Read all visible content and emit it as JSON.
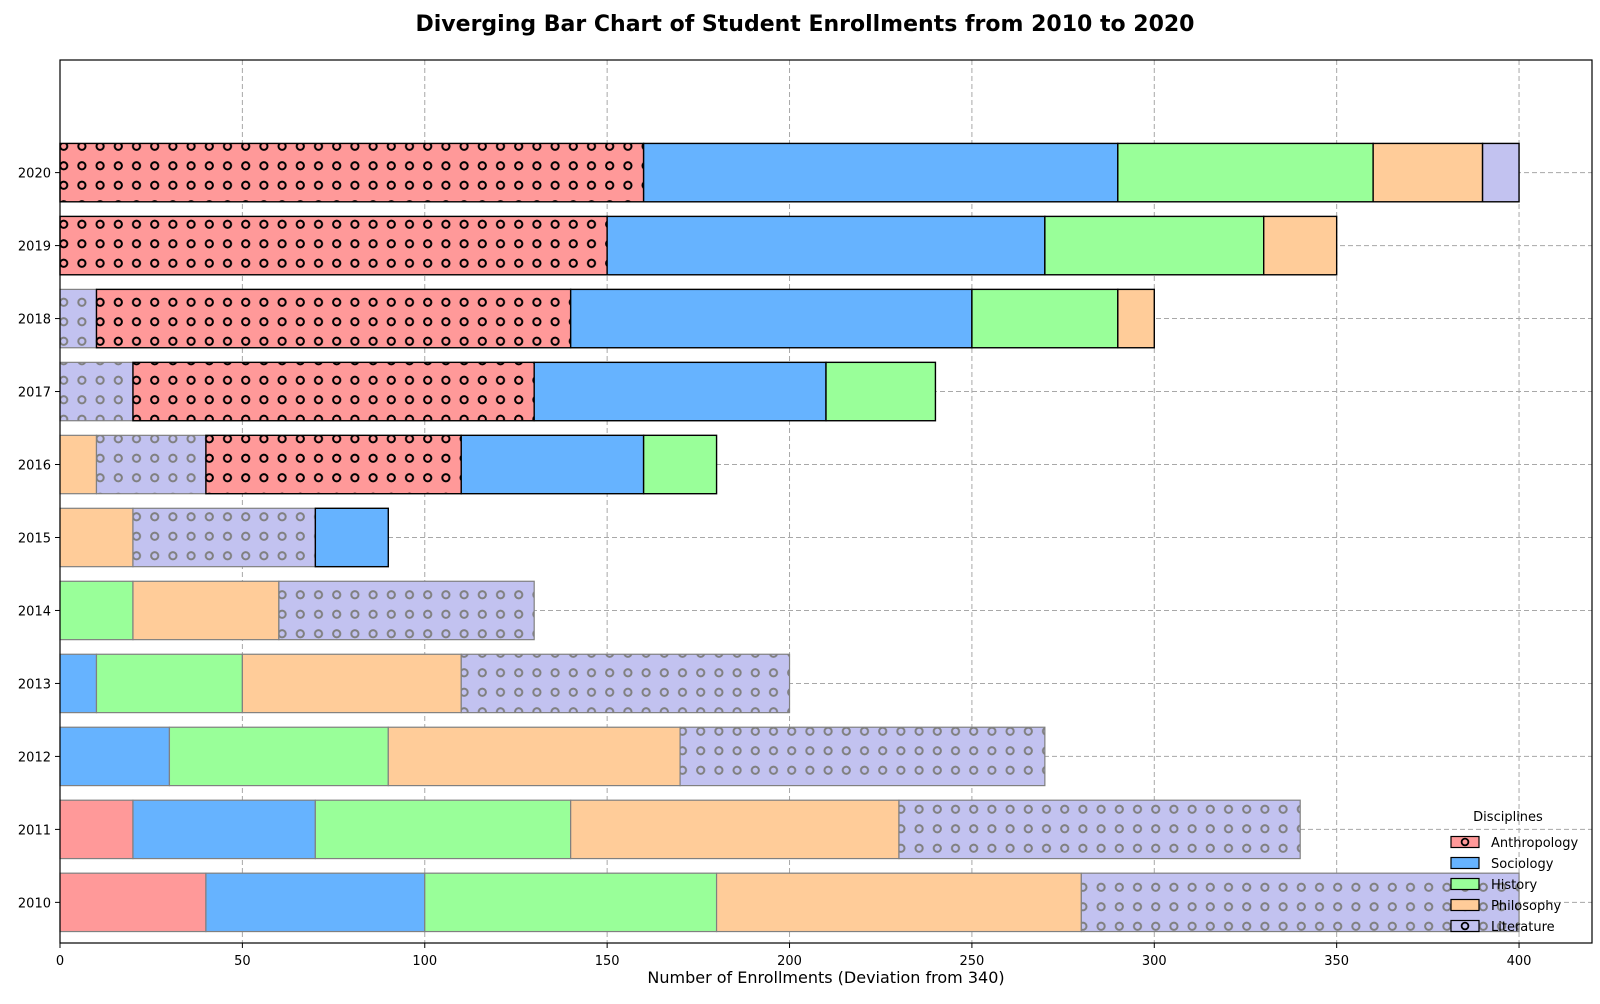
{
  "chart_data": {
    "type": "bar",
    "orientation": "horizontal",
    "stacking": "stacked",
    "title": "Diverging Bar Chart of Student Enrollments from 2010 to 2020",
    "xlabel": "Number of Enrollments (Deviation from 340)",
    "ylabel": "",
    "xlim": [
      0,
      420
    ],
    "xticks": [
      0,
      50,
      100,
      150,
      200,
      250,
      300,
      350,
      400
    ],
    "grid": true,
    "legend": {
      "title": "Disciplines",
      "placement": "bottom-right"
    },
    "categories": [
      "2010",
      "2011",
      "2012",
      "2013",
      "2014",
      "2015",
      "2016",
      "2017",
      "2018",
      "2019",
      "2020"
    ],
    "series": [
      {
        "name": "Anthropology",
        "color": "#ff9999",
        "hatch": "circles"
      },
      {
        "name": "Sociology",
        "color": "#66b3ff",
        "hatch": "none"
      },
      {
        "name": "History",
        "color": "#99ff99",
        "hatch": "none"
      },
      {
        "name": "Philosophy",
        "color": "#ffcc99",
        "hatch": "none"
      },
      {
        "name": "Literature",
        "color": "#c2c2f0",
        "hatch": "circles"
      }
    ],
    "segments": [
      {
        "category": "2010",
        "parts": [
          {
            "series": "Anthropology",
            "start": 0,
            "end": 40,
            "hatch": false,
            "dark_edge": false
          },
          {
            "series": "Sociology",
            "start": 40,
            "end": 100,
            "hatch": false,
            "dark_edge": false
          },
          {
            "series": "History",
            "start": 100,
            "end": 180,
            "hatch": false,
            "dark_edge": false
          },
          {
            "series": "Philosophy",
            "start": 180,
            "end": 280,
            "hatch": false,
            "dark_edge": false
          },
          {
            "series": "Literature",
            "start": 280,
            "end": 400,
            "hatch": true,
            "dark_edge": false
          }
        ]
      },
      {
        "category": "2011",
        "parts": [
          {
            "series": "Anthropology",
            "start": 0,
            "end": 20,
            "hatch": false,
            "dark_edge": false
          },
          {
            "series": "Sociology",
            "start": 20,
            "end": 70,
            "hatch": false,
            "dark_edge": false
          },
          {
            "series": "History",
            "start": 70,
            "end": 140,
            "hatch": false,
            "dark_edge": false
          },
          {
            "series": "Philosophy",
            "start": 140,
            "end": 230,
            "hatch": false,
            "dark_edge": false
          },
          {
            "series": "Literature",
            "start": 230,
            "end": 340,
            "hatch": true,
            "dark_edge": false
          }
        ]
      },
      {
        "category": "2012",
        "parts": [
          {
            "series": "Sociology",
            "start": 0,
            "end": 30,
            "hatch": false,
            "dark_edge": false
          },
          {
            "series": "History",
            "start": 30,
            "end": 90,
            "hatch": false,
            "dark_edge": false
          },
          {
            "series": "Philosophy",
            "start": 90,
            "end": 170,
            "hatch": false,
            "dark_edge": false
          },
          {
            "series": "Literature",
            "start": 170,
            "end": 270,
            "hatch": true,
            "dark_edge": false
          }
        ]
      },
      {
        "category": "2013",
        "parts": [
          {
            "series": "Sociology",
            "start": 0,
            "end": 10,
            "hatch": false,
            "dark_edge": false
          },
          {
            "series": "History",
            "start": 10,
            "end": 50,
            "hatch": false,
            "dark_edge": false
          },
          {
            "series": "Philosophy",
            "start": 50,
            "end": 110,
            "hatch": false,
            "dark_edge": false
          },
          {
            "series": "Literature",
            "start": 110,
            "end": 200,
            "hatch": true,
            "dark_edge": false
          }
        ]
      },
      {
        "category": "2014",
        "parts": [
          {
            "series": "History",
            "start": 0,
            "end": 20,
            "hatch": false,
            "dark_edge": false
          },
          {
            "series": "Philosophy",
            "start": 20,
            "end": 60,
            "hatch": false,
            "dark_edge": false
          },
          {
            "series": "Literature",
            "start": 60,
            "end": 130,
            "hatch": true,
            "dark_edge": false
          }
        ]
      },
      {
        "category": "2015",
        "parts": [
          {
            "series": "Philosophy",
            "start": 0,
            "end": 20,
            "hatch": false,
            "dark_edge": false
          },
          {
            "series": "Literature",
            "start": 20,
            "end": 70,
            "hatch": true,
            "dark_edge": false
          },
          {
            "series": "Sociology",
            "start": 70,
            "end": 90,
            "hatch": false,
            "dark_edge": true
          }
        ]
      },
      {
        "category": "2016",
        "parts": [
          {
            "series": "Philosophy",
            "start": 0,
            "end": 10,
            "hatch": false,
            "dark_edge": false
          },
          {
            "series": "Literature",
            "start": 10,
            "end": 40,
            "hatch": true,
            "dark_edge": false
          },
          {
            "series": "Anthropology",
            "start": 40,
            "end": 110,
            "hatch": true,
            "dark_edge": true
          },
          {
            "series": "Sociology",
            "start": 110,
            "end": 160,
            "hatch": false,
            "dark_edge": true
          },
          {
            "series": "History",
            "start": 160,
            "end": 180,
            "hatch": false,
            "dark_edge": true
          }
        ]
      },
      {
        "category": "2017",
        "parts": [
          {
            "series": "Literature",
            "start": 0,
            "end": 20,
            "hatch": true,
            "dark_edge": false
          },
          {
            "series": "Anthropology",
            "start": 20,
            "end": 130,
            "hatch": true,
            "dark_edge": true
          },
          {
            "series": "Sociology",
            "start": 130,
            "end": 210,
            "hatch": false,
            "dark_edge": true
          },
          {
            "series": "History",
            "start": 210,
            "end": 240,
            "hatch": false,
            "dark_edge": true
          }
        ]
      },
      {
        "category": "2018",
        "parts": [
          {
            "series": "Literature",
            "start": 0,
            "end": 10,
            "hatch": true,
            "dark_edge": false
          },
          {
            "series": "Anthropology",
            "start": 10,
            "end": 140,
            "hatch": true,
            "dark_edge": true
          },
          {
            "series": "Sociology",
            "start": 140,
            "end": 250,
            "hatch": false,
            "dark_edge": true
          },
          {
            "series": "History",
            "start": 250,
            "end": 290,
            "hatch": false,
            "dark_edge": true
          },
          {
            "series": "Philosophy",
            "start": 290,
            "end": 300,
            "hatch": false,
            "dark_edge": true
          }
        ]
      },
      {
        "category": "2019",
        "parts": [
          {
            "series": "Anthropology",
            "start": 0,
            "end": 150,
            "hatch": true,
            "dark_edge": true
          },
          {
            "series": "Sociology",
            "start": 150,
            "end": 270,
            "hatch": false,
            "dark_edge": true
          },
          {
            "series": "History",
            "start": 270,
            "end": 330,
            "hatch": false,
            "dark_edge": true
          },
          {
            "series": "Philosophy",
            "start": 330,
            "end": 350,
            "hatch": false,
            "dark_edge": true
          }
        ]
      },
      {
        "category": "2020",
        "parts": [
          {
            "series": "Anthropology",
            "start": 0,
            "end": 160,
            "hatch": true,
            "dark_edge": true
          },
          {
            "series": "Sociology",
            "start": 160,
            "end": 290,
            "hatch": false,
            "dark_edge": true
          },
          {
            "series": "History",
            "start": 290,
            "end": 360,
            "hatch": false,
            "dark_edge": true
          },
          {
            "series": "Philosophy",
            "start": 360,
            "end": 390,
            "hatch": false,
            "dark_edge": true
          },
          {
            "series": "Literature",
            "start": 390,
            "end": 400,
            "hatch": false,
            "dark_edge": true
          }
        ]
      }
    ]
  }
}
